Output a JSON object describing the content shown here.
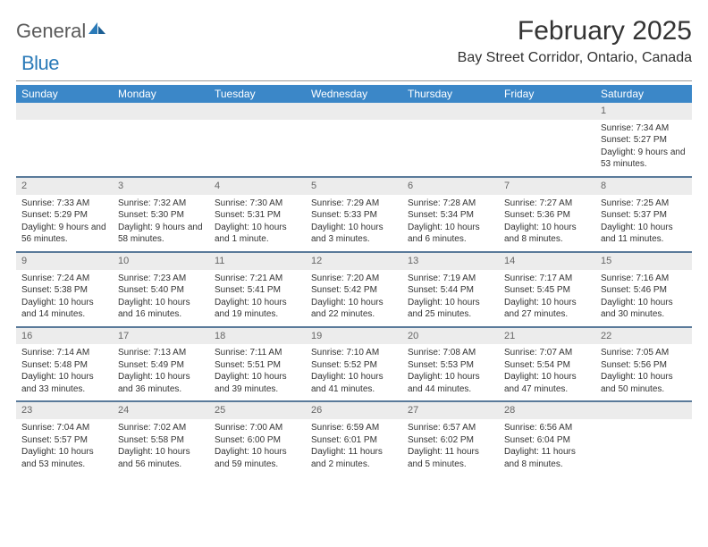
{
  "brand": {
    "word1": "General",
    "word2": "Blue"
  },
  "title": "February 2025",
  "location": "Bay Street Corridor, Ontario, Canada",
  "colors": {
    "header_bg": "#3b87c8",
    "header_fg": "#ffffff",
    "daynum_bg": "#ececec",
    "row_border": "#5a7a9a",
    "brand_blue": "#2a7ab8",
    "text": "#333333"
  },
  "weekdays": [
    "Sunday",
    "Monday",
    "Tuesday",
    "Wednesday",
    "Thursday",
    "Friday",
    "Saturday"
  ],
  "weeks": [
    {
      "nums": [
        "",
        "",
        "",
        "",
        "",
        "",
        "1"
      ],
      "cells": [
        null,
        null,
        null,
        null,
        null,
        null,
        {
          "sr": "7:34 AM",
          "ss": "5:27 PM",
          "dl": "9 hours and 53 minutes."
        }
      ]
    },
    {
      "nums": [
        "2",
        "3",
        "4",
        "5",
        "6",
        "7",
        "8"
      ],
      "cells": [
        {
          "sr": "7:33 AM",
          "ss": "5:29 PM",
          "dl": "9 hours and 56 minutes."
        },
        {
          "sr": "7:32 AM",
          "ss": "5:30 PM",
          "dl": "9 hours and 58 minutes."
        },
        {
          "sr": "7:30 AM",
          "ss": "5:31 PM",
          "dl": "10 hours and 1 minute."
        },
        {
          "sr": "7:29 AM",
          "ss": "5:33 PM",
          "dl": "10 hours and 3 minutes."
        },
        {
          "sr": "7:28 AM",
          "ss": "5:34 PM",
          "dl": "10 hours and 6 minutes."
        },
        {
          "sr": "7:27 AM",
          "ss": "5:36 PM",
          "dl": "10 hours and 8 minutes."
        },
        {
          "sr": "7:25 AM",
          "ss": "5:37 PM",
          "dl": "10 hours and 11 minutes."
        }
      ]
    },
    {
      "nums": [
        "9",
        "10",
        "11",
        "12",
        "13",
        "14",
        "15"
      ],
      "cells": [
        {
          "sr": "7:24 AM",
          "ss": "5:38 PM",
          "dl": "10 hours and 14 minutes."
        },
        {
          "sr": "7:23 AM",
          "ss": "5:40 PM",
          "dl": "10 hours and 16 minutes."
        },
        {
          "sr": "7:21 AM",
          "ss": "5:41 PM",
          "dl": "10 hours and 19 minutes."
        },
        {
          "sr": "7:20 AM",
          "ss": "5:42 PM",
          "dl": "10 hours and 22 minutes."
        },
        {
          "sr": "7:19 AM",
          "ss": "5:44 PM",
          "dl": "10 hours and 25 minutes."
        },
        {
          "sr": "7:17 AM",
          "ss": "5:45 PM",
          "dl": "10 hours and 27 minutes."
        },
        {
          "sr": "7:16 AM",
          "ss": "5:46 PM",
          "dl": "10 hours and 30 minutes."
        }
      ]
    },
    {
      "nums": [
        "16",
        "17",
        "18",
        "19",
        "20",
        "21",
        "22"
      ],
      "cells": [
        {
          "sr": "7:14 AM",
          "ss": "5:48 PM",
          "dl": "10 hours and 33 minutes."
        },
        {
          "sr": "7:13 AM",
          "ss": "5:49 PM",
          "dl": "10 hours and 36 minutes."
        },
        {
          "sr": "7:11 AM",
          "ss": "5:51 PM",
          "dl": "10 hours and 39 minutes."
        },
        {
          "sr": "7:10 AM",
          "ss": "5:52 PM",
          "dl": "10 hours and 41 minutes."
        },
        {
          "sr": "7:08 AM",
          "ss": "5:53 PM",
          "dl": "10 hours and 44 minutes."
        },
        {
          "sr": "7:07 AM",
          "ss": "5:54 PM",
          "dl": "10 hours and 47 minutes."
        },
        {
          "sr": "7:05 AM",
          "ss": "5:56 PM",
          "dl": "10 hours and 50 minutes."
        }
      ]
    },
    {
      "nums": [
        "23",
        "24",
        "25",
        "26",
        "27",
        "28",
        ""
      ],
      "cells": [
        {
          "sr": "7:04 AM",
          "ss": "5:57 PM",
          "dl": "10 hours and 53 minutes."
        },
        {
          "sr": "7:02 AM",
          "ss": "5:58 PM",
          "dl": "10 hours and 56 minutes."
        },
        {
          "sr": "7:00 AM",
          "ss": "6:00 PM",
          "dl": "10 hours and 59 minutes."
        },
        {
          "sr": "6:59 AM",
          "ss": "6:01 PM",
          "dl": "11 hours and 2 minutes."
        },
        {
          "sr": "6:57 AM",
          "ss": "6:02 PM",
          "dl": "11 hours and 5 minutes."
        },
        {
          "sr": "6:56 AM",
          "ss": "6:04 PM",
          "dl": "11 hours and 8 minutes."
        },
        null
      ]
    }
  ],
  "labels": {
    "sunrise": "Sunrise:",
    "sunset": "Sunset:",
    "daylight": "Daylight:"
  }
}
